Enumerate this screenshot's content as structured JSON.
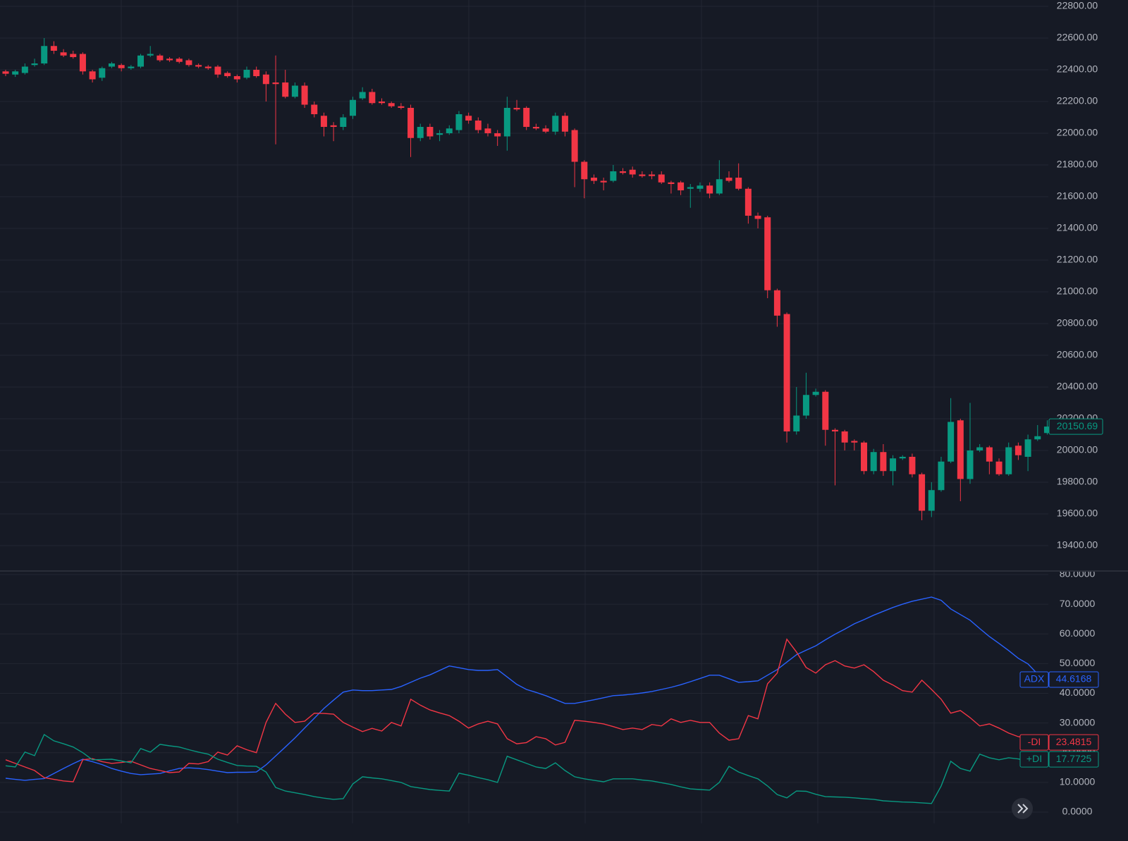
{
  "chart_data": [
    {
      "type": "candlestick",
      "open": [
        22390,
        22370,
        22380,
        22430,
        22440,
        22550,
        22510,
        22500,
        22500,
        22390,
        22350,
        22420,
        22430,
        22410,
        22420,
        22490,
        22490,
        22470,
        22470,
        22460,
        22430,
        22420,
        22420,
        22380,
        22360,
        22350,
        22400,
        22370,
        22320,
        22320,
        22230,
        22300,
        22180,
        22110,
        22050,
        22040,
        22110,
        22220,
        22260,
        22200,
        22190,
        22170,
        22160,
        21970,
        22040,
        21990,
        22000,
        22020,
        22110,
        22080,
        22030,
        22000,
        21980,
        22160,
        22160,
        22040,
        22030,
        22010,
        22110,
        22020,
        21820,
        21720,
        21700,
        21700,
        21760,
        21770,
        21740,
        21740,
        21740,
        21690,
        21690,
        21650,
        21650,
        21670,
        21620,
        21720,
        21720,
        21650,
        21480,
        21470,
        21010,
        20860,
        20120,
        20220,
        20350,
        20370,
        20130,
        20120,
        20060,
        20050,
        19870,
        19990,
        19870,
        19950,
        19960,
        19850,
        19620,
        19750,
        19930,
        20190,
        19820,
        20000,
        20020,
        19930,
        19850,
        20030,
        19960,
        20070,
        20110
      ],
      "high": [
        22400,
        22400,
        22440,
        22470,
        22600,
        22580,
        22530,
        22520,
        22510,
        22400,
        22420,
        22450,
        22440,
        22430,
        22500,
        22550,
        22500,
        22480,
        22480,
        22470,
        22440,
        22430,
        22430,
        22390,
        22370,
        22420,
        22420,
        22390,
        22490,
        22400,
        22320,
        22320,
        22200,
        22130,
        22070,
        22120,
        22230,
        22290,
        22280,
        22220,
        22200,
        22190,
        22180,
        22060,
        22060,
        22020,
        22050,
        22140,
        22130,
        22100,
        22060,
        22020,
        22230,
        22210,
        22170,
        22060,
        22050,
        22130,
        22130,
        22030,
        21830,
        21740,
        21720,
        21800,
        21780,
        21790,
        21760,
        21760,
        21760,
        21700,
        21700,
        21680,
        21690,
        21690,
        21830,
        21760,
        21810,
        21660,
        21500,
        21480,
        21020,
        20870,
        20400,
        20490,
        20390,
        20380,
        20140,
        20130,
        20070,
        20060,
        20010,
        20040,
        19970,
        19970,
        19980,
        19860,
        19800,
        19960,
        20330,
        20200,
        20300,
        20040,
        20030,
        19950,
        20050,
        20050,
        20100,
        20160,
        20190
      ],
      "low": [
        22360,
        22355,
        22370,
        22420,
        22430,
        22500,
        22480,
        22470,
        22370,
        22320,
        22330,
        22410,
        22390,
        22400,
        22410,
        22480,
        22450,
        22450,
        22440,
        22420,
        22410,
        22400,
        22350,
        22350,
        22320,
        22340,
        22350,
        22200,
        21930,
        22220,
        22220,
        22160,
        22100,
        21980,
        21950,
        22020,
        22090,
        22210,
        22180,
        22180,
        22160,
        22150,
        21850,
        21950,
        21960,
        21950,
        21990,
        22000,
        22060,
        22000,
        21980,
        21920,
        21890,
        22140,
        22020,
        22020,
        22000,
        21990,
        21980,
        21660,
        21590,
        21680,
        21640,
        21690,
        21740,
        21720,
        21720,
        21710,
        21680,
        21620,
        21610,
        21530,
        21630,
        21590,
        21610,
        21690,
        21640,
        21430,
        21400,
        20960,
        20780,
        20050,
        20100,
        20200,
        20340,
        20030,
        19780,
        20000,
        20000,
        19850,
        19850,
        19840,
        19780,
        19940,
        19830,
        19560,
        19580,
        19740,
        19920,
        19680,
        19790,
        19990,
        19850,
        19840,
        19840,
        19940,
        19870,
        20060,
        20100
      ],
      "close": [
        22375,
        22390,
        22420,
        22440,
        22550,
        22520,
        22490,
        22480,
        22390,
        22340,
        22410,
        22440,
        22410,
        22420,
        22490,
        22500,
        22460,
        22460,
        22450,
        22430,
        22420,
        22410,
        22370,
        22360,
        22340,
        22400,
        22360,
        22310,
        22310,
        22230,
        22300,
        22180,
        22120,
        22040,
        22040,
        22100,
        22210,
        22260,
        22190,
        22190,
        22170,
        22160,
        21970,
        22040,
        21980,
        22000,
        22030,
        22120,
        22080,
        22020,
        22000,
        21980,
        22160,
        22150,
        22040,
        22030,
        22010,
        22110,
        22010,
        21820,
        21710,
        21700,
        21690,
        21760,
        21750,
        21740,
        21730,
        21730,
        21690,
        21680,
        21640,
        21660,
        21670,
        21620,
        21710,
        21700,
        21650,
        21480,
        21460,
        21010,
        20850,
        20120,
        20220,
        20350,
        20370,
        20130,
        20120,
        20050,
        20050,
        19870,
        19990,
        19870,
        19950,
        19960,
        19850,
        19620,
        19750,
        19930,
        20180,
        19820,
        20000,
        20020,
        19930,
        19850,
        20020,
        19970,
        20070,
        20090,
        20150.69
      ],
      "up_color": "#089981",
      "down_color": "#f23645",
      "ylim": [
        19250,
        22840
      ],
      "yticks": [
        {
          "value": 19400,
          "label": "19400.00"
        },
        {
          "value": 19600,
          "label": "19600.00"
        },
        {
          "value": 19800,
          "label": "19800.00"
        },
        {
          "value": 20000,
          "label": "20000.00"
        },
        {
          "value": 20200,
          "label": "20200.00"
        },
        {
          "value": 20400,
          "label": "20400.00"
        },
        {
          "value": 20600,
          "label": "20600.00"
        },
        {
          "value": 20800,
          "label": "20800.00"
        },
        {
          "value": 21000,
          "label": "21000.00"
        },
        {
          "value": 21200,
          "label": "21200.00"
        },
        {
          "value": 21400,
          "label": "21400.00"
        },
        {
          "value": 21600,
          "label": "21600.00"
        },
        {
          "value": 21800,
          "label": "21800.00"
        },
        {
          "value": 22000,
          "label": "22000.00"
        },
        {
          "value": 22200,
          "label": "22200.00"
        },
        {
          "value": 22400,
          "label": "22400.00"
        },
        {
          "value": 22600,
          "label": "22600.00"
        },
        {
          "value": 22800,
          "label": "22800.00"
        }
      ],
      "grid": true
    },
    {
      "type": "line",
      "series": [
        {
          "name": "ADX",
          "color": "#2962ff",
          "values": [
            11.4,
            11,
            10.7,
            11,
            11.3,
            13,
            14.7,
            16.3,
            17.8,
            17,
            16,
            14.7,
            13.8,
            13,
            12.6,
            12.8,
            13,
            13.9,
            14.7,
            14.9,
            14.7,
            14.3,
            13.8,
            13.3,
            13.4,
            13.4,
            13.5,
            15.9,
            18.9,
            21.9,
            25,
            28.3,
            31.6,
            34.9,
            37.7,
            40.4,
            41.1,
            40.9,
            40.9,
            41.1,
            41.3,
            42.3,
            43.7,
            45.1,
            46.2,
            47.7,
            49.2,
            48.6,
            48,
            47.7,
            47.7,
            48,
            45.5,
            43,
            41.3,
            40.3,
            39.2,
            37.9,
            36.6,
            36.6,
            37.2,
            37.8,
            38.5,
            39.2,
            39.4,
            39.7,
            40.1,
            40.6,
            41.3,
            42,
            42.9,
            43.9,
            45,
            46.1,
            46.1,
            44.9,
            43.7,
            43.9,
            44.2,
            46.1,
            48,
            50.5,
            53,
            54.5,
            56,
            58,
            59.9,
            61.6,
            63.4,
            64.8,
            66.3,
            67.6,
            68.9,
            70,
            71,
            71.7,
            72.4,
            71.3,
            68.4,
            66.5,
            64.6,
            61.8,
            59.1,
            56.8,
            54.4,
            51.8,
            49.9,
            46.5,
            44.6168
          ]
        },
        {
          "name": "-DI",
          "color": "#f23645",
          "values": [
            17.6,
            16.4,
            15.2,
            14,
            11.6,
            11,
            10.5,
            10.2,
            17.6,
            18,
            17,
            16.4,
            16.7,
            17.1,
            15.9,
            14.7,
            14,
            13.3,
            13.5,
            16.4,
            16.2,
            17,
            20.2,
            19.2,
            22.3,
            21,
            20,
            30.2,
            36.6,
            33,
            30.2,
            30.6,
            33.3,
            33.2,
            33,
            30.2,
            28.6,
            27.1,
            28.2,
            27.3,
            30.2,
            29,
            38,
            36,
            34.4,
            33.4,
            32.5,
            30.6,
            28.3,
            29.7,
            30.6,
            29.7,
            24.7,
            23,
            23.4,
            25.4,
            24.7,
            22.6,
            23.5,
            30.9,
            30.6,
            30.2,
            29.7,
            28.8,
            27.8,
            28.3,
            27.8,
            29.5,
            29,
            31.4,
            30.2,
            30.9,
            30.2,
            30.2,
            26.6,
            24.2,
            24.7,
            32.5,
            31.4,
            43.2,
            46.8,
            58.2,
            53.9,
            48.7,
            46.8,
            49.6,
            51,
            49.2,
            48.5,
            49.6,
            47.3,
            44.4,
            42.8,
            40.9,
            40.4,
            44.4,
            41.3,
            38,
            33.3,
            34.2,
            31.8,
            29,
            29.7,
            28.3,
            26.6,
            25.4,
            24.9,
            24.2,
            23.4815
          ]
        },
        {
          "name": "+DI",
          "color": "#089981",
          "values": [
            15.6,
            15.2,
            20.2,
            19,
            26.1,
            24,
            23,
            21.9,
            20,
            17.6,
            17.7,
            17.8,
            17.2,
            16.6,
            21.4,
            20.2,
            22.8,
            22.3,
            21.9,
            21,
            20.2,
            19.5,
            17.8,
            16.7,
            15.7,
            15.5,
            15.4,
            13.5,
            8.3,
            7.1,
            6.5,
            5.9,
            5.2,
            4.7,
            4.3,
            4.5,
            9.5,
            11.9,
            11.5,
            11.2,
            10.6,
            10,
            8.6,
            8.1,
            7.6,
            7.3,
            7.1,
            13.1,
            12.4,
            11.6,
            10.9,
            10,
            18.8,
            17.6,
            16.4,
            15.2,
            14.7,
            16.6,
            14,
            11.9,
            11.2,
            10.7,
            10.2,
            11.2,
            11.2,
            11.2,
            10.8,
            10.5,
            9.9,
            9.3,
            8.5,
            7.8,
            7.6,
            7.4,
            10,
            15.4,
            13.5,
            12.3,
            11.2,
            8.8,
            5.9,
            4.8,
            7.1,
            7,
            6,
            5.2,
            5.1,
            5,
            4.8,
            4.5,
            4.3,
            3.8,
            3.6,
            3.4,
            3.3,
            3.1,
            2.9,
            8.8,
            17.1,
            14.7,
            13.8,
            19.5,
            18.3,
            17.6,
            18.3,
            17.9,
            17.1,
            17.1,
            17.7725
          ]
        }
      ],
      "ylim": [
        -3.8,
        80.7
      ],
      "yticks": [
        {
          "value": 0,
          "label": "0.0000"
        },
        {
          "value": 10,
          "label": "10.0000"
        },
        {
          "value": 20,
          "label": "20.0000"
        },
        {
          "value": 30,
          "label": "30.0000"
        },
        {
          "value": 40,
          "label": "40.0000"
        },
        {
          "value": 50,
          "label": "50.0000"
        },
        {
          "value": 60,
          "label": "60.0000"
        },
        {
          "value": 70,
          "label": "70.0000"
        },
        {
          "value": 80,
          "label": "80.0000"
        }
      ],
      "grid": true
    }
  ]
}
